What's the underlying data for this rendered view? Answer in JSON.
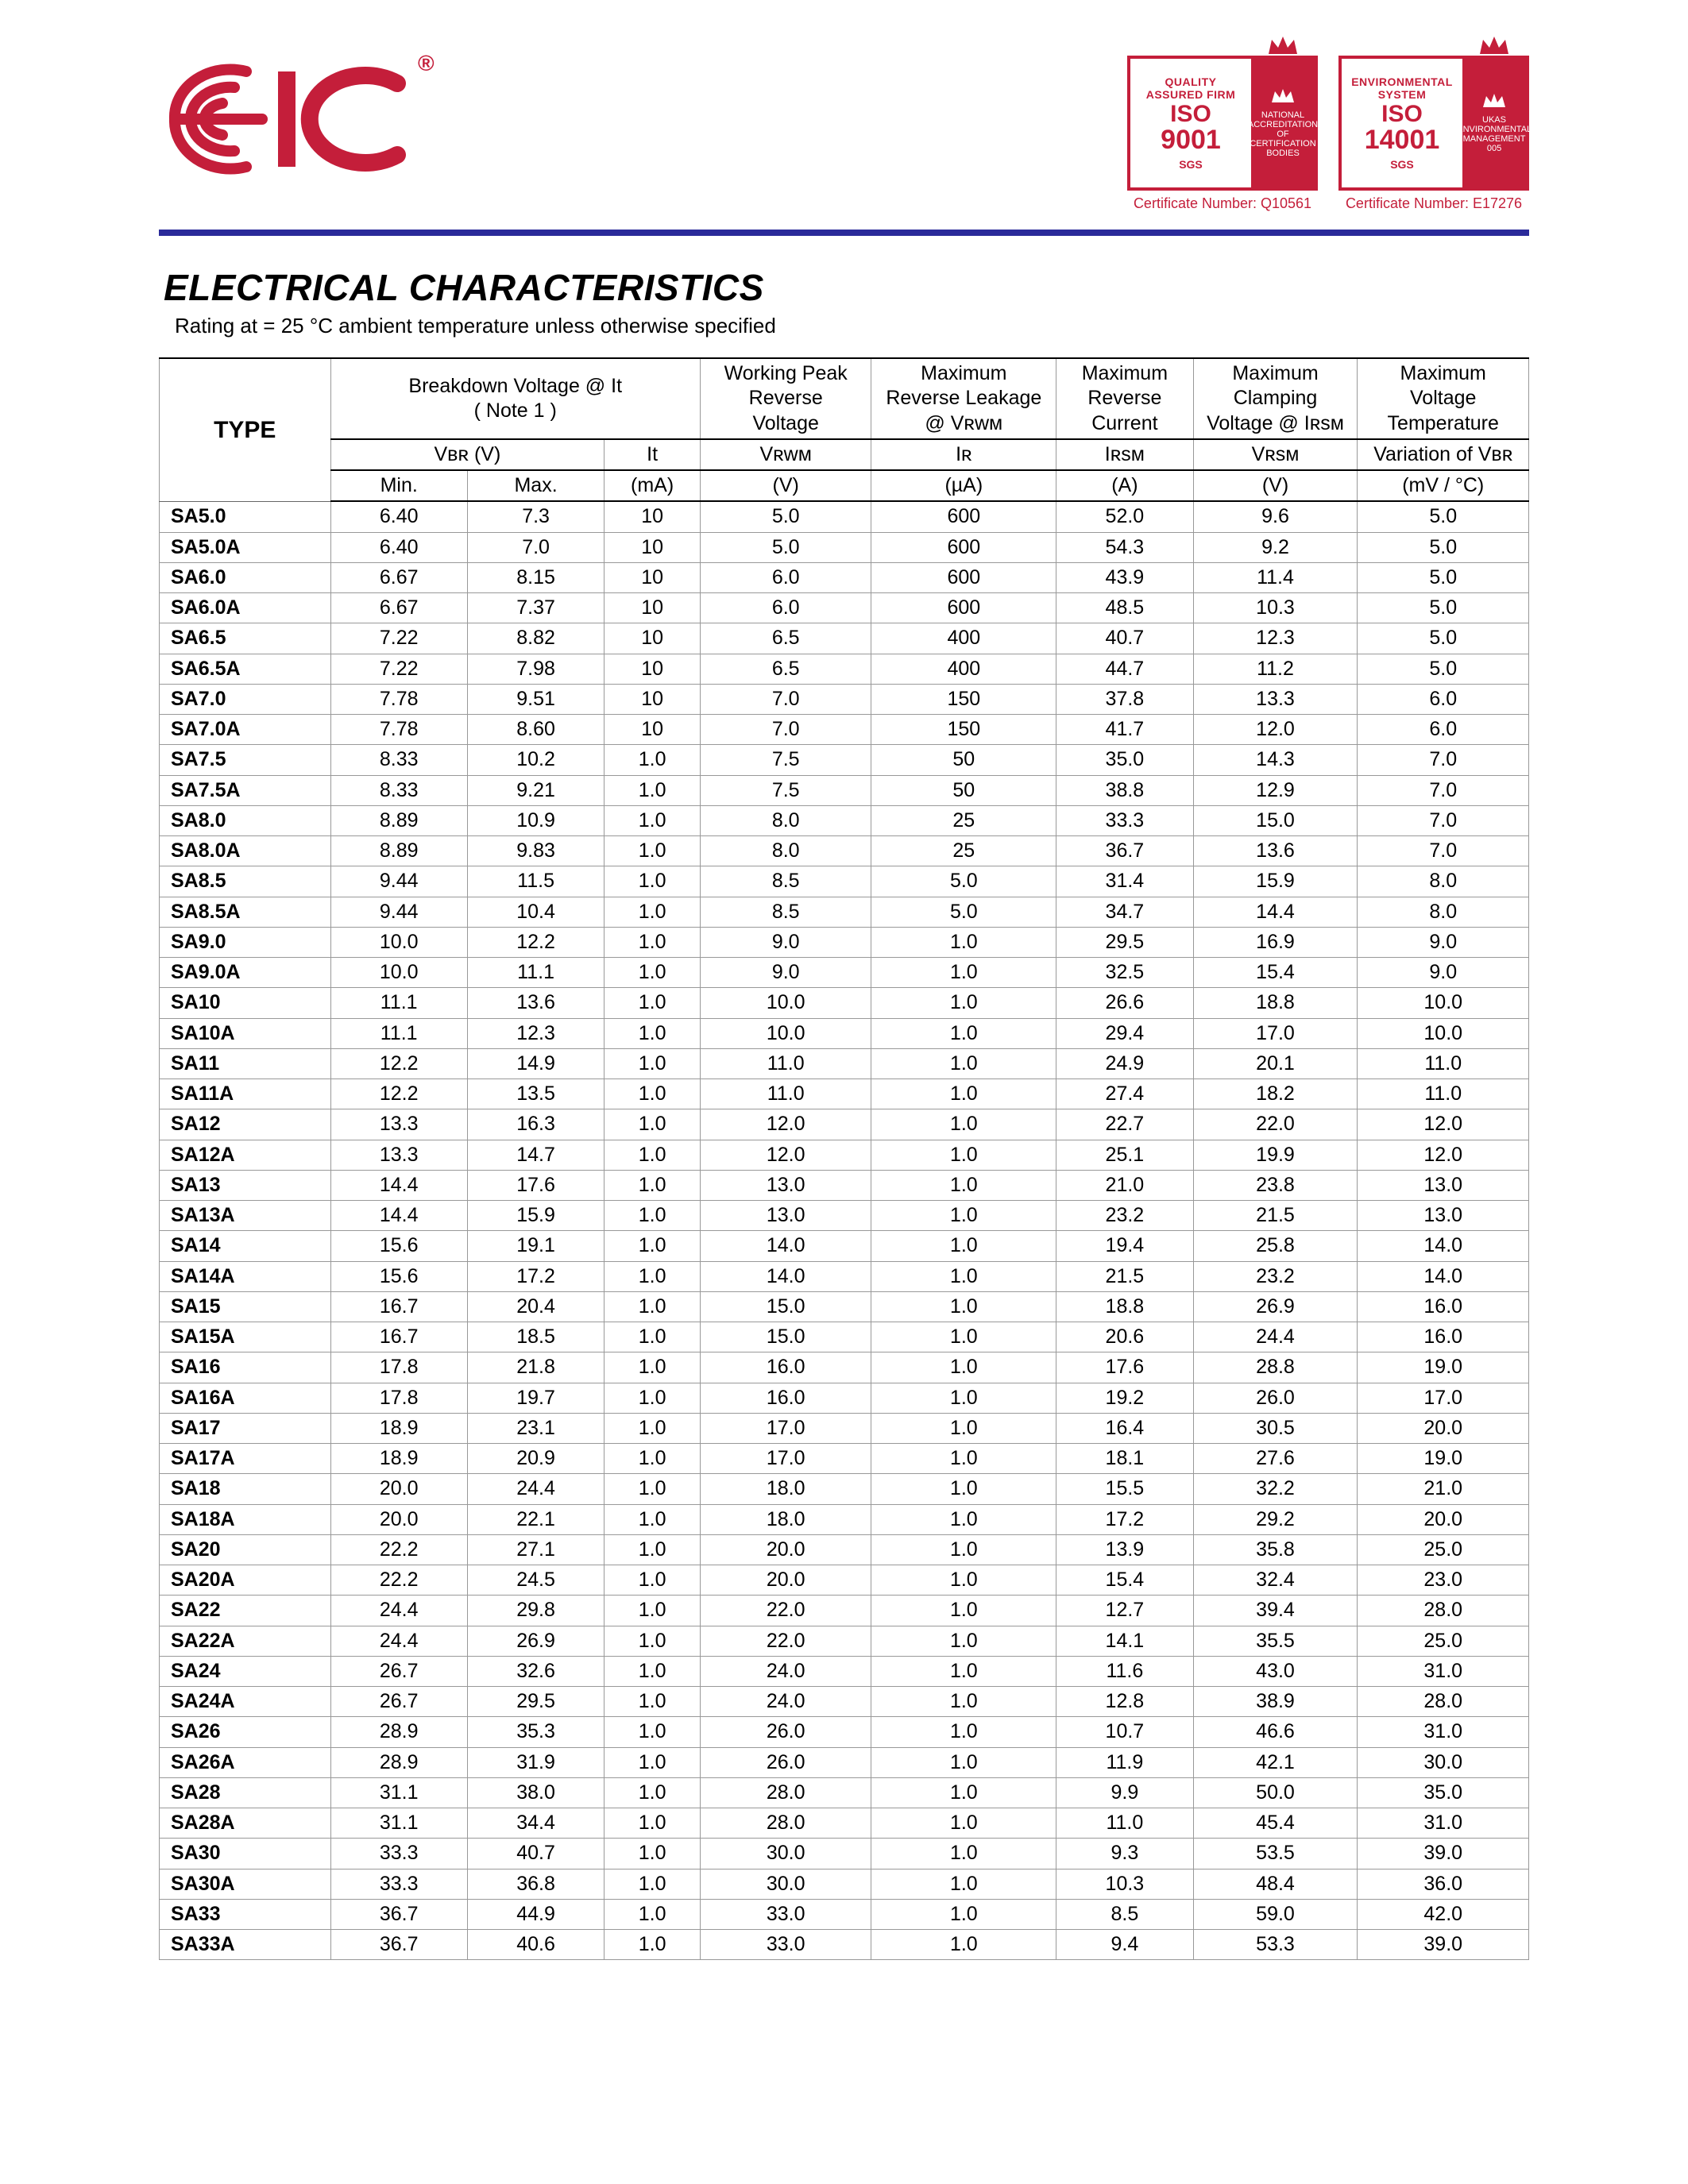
{
  "brand": {
    "name": "EIC",
    "reg": "®",
    "logo_color": "#c41e3a"
  },
  "certs": [
    {
      "ring": "QUALITY ASSURED FIRM",
      "iso": "ISO",
      "num": "9001",
      "sgs": "SGS",
      "badge": "NATIONAL ACCREDITATION OF CERTIFICATION BODIES",
      "caption": "Certificate Number: Q10561"
    },
    {
      "ring": "ENVIRONMENTAL SYSTEM",
      "iso": "ISO",
      "num": "14001",
      "sgs": "SGS",
      "badge": "UKAS ENVIRONMENTAL MANAGEMENT 005",
      "caption": "Certificate Number: E17276"
    }
  ],
  "title": "ELECTRICAL CHARACTERISTICS",
  "subtitle": "Rating at  = 25 °C ambient temperature unless otherwise specified",
  "columns": {
    "type": "TYPE",
    "breakdown_hdr": "Breakdown Voltage @  It",
    "breakdown_note": "( Note 1 )",
    "vrwm_hdr1": "Working Peak",
    "vrwm_hdr2": "Reverse",
    "vrwm_hdr3": "Voltage",
    "ir_hdr1": "Maximum",
    "ir_hdr2": "Reverse Leakage",
    "ir_hdr3": "@ Vʀᴡᴍ",
    "irsm_hdr1": "Maximum",
    "irsm_hdr2": "Reverse",
    "irsm_hdr3": "Current",
    "vrsm_hdr1": "Maximum",
    "vrsm_hdr2": "Clamping",
    "vrsm_hdr3": "Voltage @ Iʀsᴍ",
    "dv_hdr1": "Maximum",
    "dv_hdr2": "Voltage",
    "dv_hdr3": "Temperature",
    "vbr_sym": "Vʙʀ (V)",
    "it_sym": "It",
    "vrwm_sym": "Vʀᴡᴍ",
    "ir_sym": "Iʀ",
    "irsm_sym": "Iʀsᴍ",
    "vrsm_sym": "Vʀsᴍ",
    "dv_sym": "Variation of Vʙʀ",
    "min": "Min.",
    "max": "Max.",
    "it_u": "(mA)",
    "vrwm_u": "(V)",
    "ir_u": "(µA)",
    "irsm_u": "(A)",
    "vrsm_u": "(V)",
    "dv_u": "(mV / °C)"
  },
  "rows": [
    [
      "SA5.0",
      "6.40",
      "7.3",
      "10",
      "5.0",
      "600",
      "52.0",
      "9.6",
      "5.0"
    ],
    [
      "SA5.0A",
      "6.40",
      "7.0",
      "10",
      "5.0",
      "600",
      "54.3",
      "9.2",
      "5.0"
    ],
    [
      "SA6.0",
      "6.67",
      "8.15",
      "10",
      "6.0",
      "600",
      "43.9",
      "11.4",
      "5.0"
    ],
    [
      "SA6.0A",
      "6.67",
      "7.37",
      "10",
      "6.0",
      "600",
      "48.5",
      "10.3",
      "5.0"
    ],
    [
      "SA6.5",
      "7.22",
      "8.82",
      "10",
      "6.5",
      "400",
      "40.7",
      "12.3",
      "5.0"
    ],
    [
      "SA6.5A",
      "7.22",
      "7.98",
      "10",
      "6.5",
      "400",
      "44.7",
      "11.2",
      "5.0"
    ],
    [
      "SA7.0",
      "7.78",
      "9.51",
      "10",
      "7.0",
      "150",
      "37.8",
      "13.3",
      "6.0"
    ],
    [
      "SA7.0A",
      "7.78",
      "8.60",
      "10",
      "7.0",
      "150",
      "41.7",
      "12.0",
      "6.0"
    ],
    [
      "SA7.5",
      "8.33",
      "10.2",
      "1.0",
      "7.5",
      "50",
      "35.0",
      "14.3",
      "7.0"
    ],
    [
      "SA7.5A",
      "8.33",
      "9.21",
      "1.0",
      "7.5",
      "50",
      "38.8",
      "12.9",
      "7.0"
    ],
    [
      "SA8.0",
      "8.89",
      "10.9",
      "1.0",
      "8.0",
      "25",
      "33.3",
      "15.0",
      "7.0"
    ],
    [
      "SA8.0A",
      "8.89",
      "9.83",
      "1.0",
      "8.0",
      "25",
      "36.7",
      "13.6",
      "7.0"
    ],
    [
      "SA8.5",
      "9.44",
      "11.5",
      "1.0",
      "8.5",
      "5.0",
      "31.4",
      "15.9",
      "8.0"
    ],
    [
      "SA8.5A",
      "9.44",
      "10.4",
      "1.0",
      "8.5",
      "5.0",
      "34.7",
      "14.4",
      "8.0"
    ],
    [
      "SA9.0",
      "10.0",
      "12.2",
      "1.0",
      "9.0",
      "1.0",
      "29.5",
      "16.9",
      "9.0"
    ],
    [
      "SA9.0A",
      "10.0",
      "11.1",
      "1.0",
      "9.0",
      "1.0",
      "32.5",
      "15.4",
      "9.0"
    ],
    [
      "SA10",
      "11.1",
      "13.6",
      "1.0",
      "10.0",
      "1.0",
      "26.6",
      "18.8",
      "10.0"
    ],
    [
      "SA10A",
      "11.1",
      "12.3",
      "1.0",
      "10.0",
      "1.0",
      "29.4",
      "17.0",
      "10.0"
    ],
    [
      "SA11",
      "12.2",
      "14.9",
      "1.0",
      "11.0",
      "1.0",
      "24.9",
      "20.1",
      "11.0"
    ],
    [
      "SA11A",
      "12.2",
      "13.5",
      "1.0",
      "11.0",
      "1.0",
      "27.4",
      "18.2",
      "11.0"
    ],
    [
      "SA12",
      "13.3",
      "16.3",
      "1.0",
      "12.0",
      "1.0",
      "22.7",
      "22.0",
      "12.0"
    ],
    [
      "SA12A",
      "13.3",
      "14.7",
      "1.0",
      "12.0",
      "1.0",
      "25.1",
      "19.9",
      "12.0"
    ],
    [
      "SA13",
      "14.4",
      "17.6",
      "1.0",
      "13.0",
      "1.0",
      "21.0",
      "23.8",
      "13.0"
    ],
    [
      "SA13A",
      "14.4",
      "15.9",
      "1.0",
      "13.0",
      "1.0",
      "23.2",
      "21.5",
      "13.0"
    ],
    [
      "SA14",
      "15.6",
      "19.1",
      "1.0",
      "14.0",
      "1.0",
      "19.4",
      "25.8",
      "14.0"
    ],
    [
      "SA14A",
      "15.6",
      "17.2",
      "1.0",
      "14.0",
      "1.0",
      "21.5",
      "23.2",
      "14.0"
    ],
    [
      "SA15",
      "16.7",
      "20.4",
      "1.0",
      "15.0",
      "1.0",
      "18.8",
      "26.9",
      "16.0"
    ],
    [
      "SA15A",
      "16.7",
      "18.5",
      "1.0",
      "15.0",
      "1.0",
      "20.6",
      "24.4",
      "16.0"
    ],
    [
      "SA16",
      "17.8",
      "21.8",
      "1.0",
      "16.0",
      "1.0",
      "17.6",
      "28.8",
      "19.0"
    ],
    [
      "SA16A",
      "17.8",
      "19.7",
      "1.0",
      "16.0",
      "1.0",
      "19.2",
      "26.0",
      "17.0"
    ],
    [
      "SA17",
      "18.9",
      "23.1",
      "1.0",
      "17.0",
      "1.0",
      "16.4",
      "30.5",
      "20.0"
    ],
    [
      "SA17A",
      "18.9",
      "20.9",
      "1.0",
      "17.0",
      "1.0",
      "18.1",
      "27.6",
      "19.0"
    ],
    [
      "SA18",
      "20.0",
      "24.4",
      "1.0",
      "18.0",
      "1.0",
      "15.5",
      "32.2",
      "21.0"
    ],
    [
      "SA18A",
      "20.0",
      "22.1",
      "1.0",
      "18.0",
      "1.0",
      "17.2",
      "29.2",
      "20.0"
    ],
    [
      "SA20",
      "22.2",
      "27.1",
      "1.0",
      "20.0",
      "1.0",
      "13.9",
      "35.8",
      "25.0"
    ],
    [
      "SA20A",
      "22.2",
      "24.5",
      "1.0",
      "20.0",
      "1.0",
      "15.4",
      "32.4",
      "23.0"
    ],
    [
      "SA22",
      "24.4",
      "29.8",
      "1.0",
      "22.0",
      "1.0",
      "12.7",
      "39.4",
      "28.0"
    ],
    [
      "SA22A",
      "24.4",
      "26.9",
      "1.0",
      "22.0",
      "1.0",
      "14.1",
      "35.5",
      "25.0"
    ],
    [
      "SA24",
      "26.7",
      "32.6",
      "1.0",
      "24.0",
      "1.0",
      "11.6",
      "43.0",
      "31.0"
    ],
    [
      "SA24A",
      "26.7",
      "29.5",
      "1.0",
      "24.0",
      "1.0",
      "12.8",
      "38.9",
      "28.0"
    ],
    [
      "SA26",
      "28.9",
      "35.3",
      "1.0",
      "26.0",
      "1.0",
      "10.7",
      "46.6",
      "31.0"
    ],
    [
      "SA26A",
      "28.9",
      "31.9",
      "1.0",
      "26.0",
      "1.0",
      "11.9",
      "42.1",
      "30.0"
    ],
    [
      "SA28",
      "31.1",
      "38.0",
      "1.0",
      "28.0",
      "1.0",
      "9.9",
      "50.0",
      "35.0"
    ],
    [
      "SA28A",
      "31.1",
      "34.4",
      "1.0",
      "28.0",
      "1.0",
      "11.0",
      "45.4",
      "31.0"
    ],
    [
      "SA30",
      "33.3",
      "40.7",
      "1.0",
      "30.0",
      "1.0",
      "9.3",
      "53.5",
      "39.0"
    ],
    [
      "SA30A",
      "33.3",
      "36.8",
      "1.0",
      "30.0",
      "1.0",
      "10.3",
      "48.4",
      "36.0"
    ],
    [
      "SA33",
      "36.7",
      "44.9",
      "1.0",
      "33.0",
      "1.0",
      "8.5",
      "59.0",
      "42.0"
    ],
    [
      "SA33A",
      "36.7",
      "40.6",
      "1.0",
      "33.0",
      "1.0",
      "9.4",
      "53.3",
      "39.0"
    ]
  ]
}
